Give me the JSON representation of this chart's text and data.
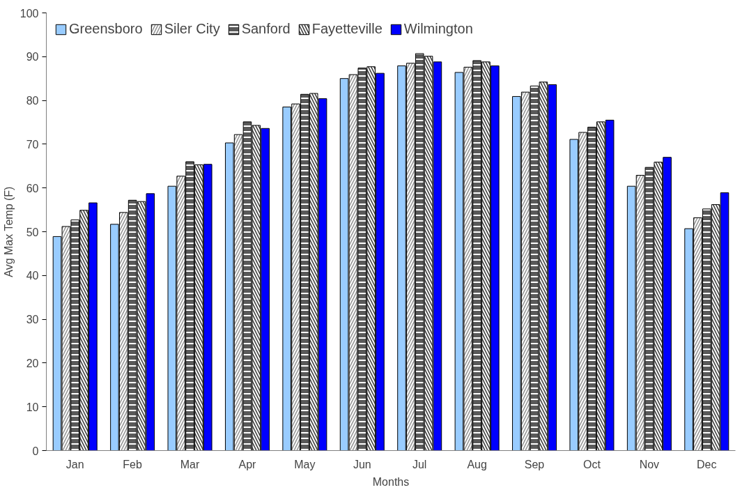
{
  "chart_data": {
    "type": "bar",
    "xlabel": "Months",
    "ylabel": "Avg Max Temp (F)",
    "categories": [
      "Jan",
      "Feb",
      "Mar",
      "Apr",
      "May",
      "Jun",
      "Jul",
      "Aug",
      "Sep",
      "Oct",
      "Nov",
      "Dec"
    ],
    "series": [
      {
        "name": "Greensboro",
        "color": "#99ccff",
        "values": [
          48.9,
          51.7,
          60.4,
          70.3,
          78.5,
          85.0,
          87.9,
          86.4,
          80.9,
          71.1,
          60.4,
          50.7
        ]
      },
      {
        "name": "Siler City",
        "color": "#969696",
        "values": [
          51.2,
          54.4,
          62.7,
          72.2,
          79.2,
          85.9,
          88.5,
          87.6,
          81.9,
          72.7,
          62.9,
          53.2
        ]
      },
      {
        "name": "Sanford",
        "color": "#595959",
        "values": [
          52.7,
          57.2,
          66.0,
          75.1,
          81.4,
          87.4,
          90.7,
          89.1,
          83.3,
          73.9,
          64.7,
          55.2
        ]
      },
      {
        "name": "Fayetteville",
        "color": "#404040",
        "values": [
          54.9,
          56.9,
          65.3,
          74.3,
          81.6,
          87.7,
          90.1,
          88.8,
          84.2,
          75.1,
          65.9,
          56.2
        ]
      },
      {
        "name": "Wilmington",
        "color": "#0000ff",
        "values": [
          56.6,
          58.7,
          65.4,
          73.6,
          80.4,
          86.2,
          88.8,
          87.9,
          83.6,
          75.5,
          67.0,
          58.9
        ]
      }
    ],
    "ylim": [
      0,
      100
    ],
    "yticks": [
      0,
      10,
      20,
      30,
      40,
      50,
      60,
      70,
      80,
      90,
      100
    ],
    "grid": false,
    "legend": "top left"
  }
}
